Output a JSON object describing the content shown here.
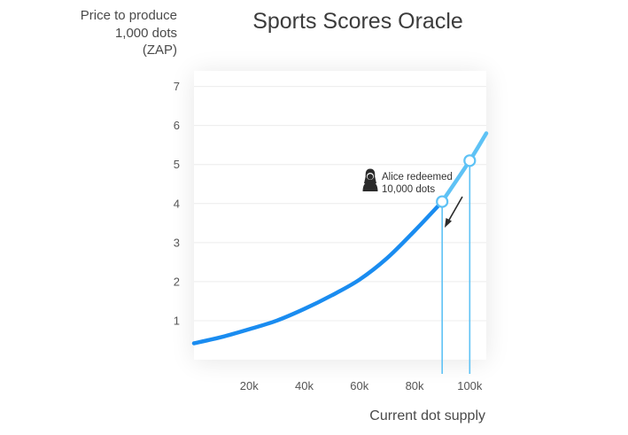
{
  "chart_data": {
    "type": "line",
    "title": "Sports Scores Oracle",
    "ylabel_lines": [
      "Price to produce",
      "1,000 dots",
      "(ZAP)"
    ],
    "xlabel": "Current dot supply",
    "x_ticks": [
      {
        "value": 20000,
        "label": "20k"
      },
      {
        "value": 40000,
        "label": "40k"
      },
      {
        "value": 60000,
        "label": "60k"
      },
      {
        "value": 80000,
        "label": "80k"
      },
      {
        "value": 100000,
        "label": "100k"
      }
    ],
    "y_ticks": [
      {
        "value": 1,
        "label": "1"
      },
      {
        "value": 2,
        "label": "2"
      },
      {
        "value": 3,
        "label": "3"
      },
      {
        "value": 4,
        "label": "4"
      },
      {
        "value": 5,
        "label": "5"
      },
      {
        "value": 6,
        "label": "6"
      },
      {
        "value": 7,
        "label": "7"
      }
    ],
    "xlim": [
      0,
      106000
    ],
    "ylim": [
      0,
      7.4
    ],
    "grid": true,
    "series": [
      {
        "color": "#1a8cf0",
        "highlight_color": "#5ec2f5",
        "points": [
          [
            0,
            0.42
          ],
          [
            10000,
            0.58
          ],
          [
            20000,
            0.78
          ],
          [
            30000,
            1.0
          ],
          [
            40000,
            1.3
          ],
          [
            50000,
            1.65
          ],
          [
            60000,
            2.05
          ],
          [
            70000,
            2.6
          ],
          [
            80000,
            3.3
          ],
          [
            90000,
            4.05
          ],
          [
            100000,
            5.1
          ],
          [
            106000,
            5.8
          ]
        ],
        "highlight_range": [
          90000,
          106000
        ]
      }
    ],
    "markers": [
      {
        "x": 90000,
        "y": 4.05
      },
      {
        "x": 100000,
        "y": 5.1
      }
    ],
    "annotation": {
      "lines": [
        "Alice redeemed",
        "10,000 dots"
      ],
      "icon": "user-avatar-icon",
      "arrow": "down-left"
    }
  }
}
